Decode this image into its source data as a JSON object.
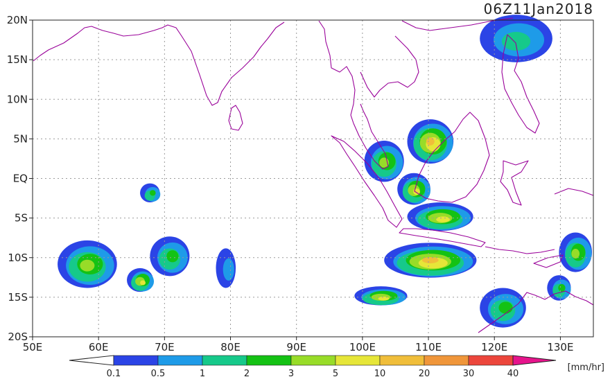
{
  "title": "06Z11Jan2018",
  "map": {
    "lon_range": [
      50,
      135
    ],
    "lat_range": [
      -20,
      20
    ],
    "lon_ticks": [
      "50E",
      "60E",
      "70E",
      "80E",
      "90E",
      "100E",
      "110E",
      "120E",
      "130E"
    ],
    "lat_ticks": [
      "20N",
      "15N",
      "10N",
      "5N",
      "EQ",
      "5S",
      "10S",
      "15S",
      "20S"
    ],
    "coastline_color": "#990099",
    "grid": "dotted"
  },
  "colorbar": {
    "unit": "[mm/hr]",
    "labels": [
      "0.1",
      "0.5",
      "1",
      "2",
      "3",
      "5",
      "10",
      "20",
      "30",
      "40"
    ],
    "colors": [
      "#2b44e6",
      "#1e9be8",
      "#16c98a",
      "#14c214",
      "#98dc28",
      "#e6e638",
      "#f0be3a",
      "#f0963a",
      "#ec463c",
      "#e6148c"
    ]
  },
  "rain_areas": [
    {
      "name": "philippines-north",
      "lon": 123.5,
      "lat": 17.5,
      "rx": 5.5,
      "ry": 3.0,
      "level": 2
    },
    {
      "name": "south-china-sea-south",
      "lon": 110.5,
      "lat": 4.5,
      "rx": 3.5,
      "ry": 2.8,
      "level": 6
    },
    {
      "name": "sumatra-malaya",
      "lon": 103.5,
      "lat": 2.0,
      "rx": 3.0,
      "ry": 2.6,
      "level": 4
    },
    {
      "name": "borneo-west",
      "lon": 108.0,
      "lat": -1.5,
      "rx": 2.5,
      "ry": 2.0,
      "level": 5
    },
    {
      "name": "java-sea",
      "lon": 112.0,
      "lat": -5.0,
      "rx": 5.0,
      "ry": 1.8,
      "level": 5
    },
    {
      "name": "lesser-sunda-sea",
      "lon": 110.5,
      "lat": -10.5,
      "rx": 7.0,
      "ry": 2.2,
      "level": 6
    },
    {
      "name": "indian-ocean-south-1",
      "lon": 58.5,
      "lat": -11.0,
      "rx": 4.5,
      "ry": 3.0,
      "level": 4
    },
    {
      "name": "indian-ocean-south-2",
      "lon": 66.5,
      "lat": -13.0,
      "rx": 2.0,
      "ry": 1.5,
      "level": 5
    },
    {
      "name": "indian-ocean-south-3",
      "lon": 71.0,
      "lat": -10.0,
      "rx": 3.0,
      "ry": 2.5,
      "level": 3
    },
    {
      "name": "indian-ocean-blue",
      "lon": 79.5,
      "lat": -11.5,
      "rx": 1.5,
      "ry": 2.5,
      "level": 1
    },
    {
      "name": "maldives-east",
      "lon": 68.0,
      "lat": -2.0,
      "rx": 1.5,
      "ry": 1.2,
      "level": 3
    },
    {
      "name": "sumba-south",
      "lon": 103.0,
      "lat": -15.0,
      "rx": 4.0,
      "ry": 1.2,
      "level": 5
    },
    {
      "name": "timor-sea",
      "lon": 121.5,
      "lat": -16.5,
      "rx": 3.5,
      "ry": 2.5,
      "level": 3
    },
    {
      "name": "banda-east",
      "lon": 132.5,
      "lat": -9.5,
      "rx": 2.5,
      "ry": 2.5,
      "level": 4
    },
    {
      "name": "arafura",
      "lon": 130.0,
      "lat": -14.0,
      "rx": 1.8,
      "ry": 1.6,
      "level": 3
    }
  ]
}
